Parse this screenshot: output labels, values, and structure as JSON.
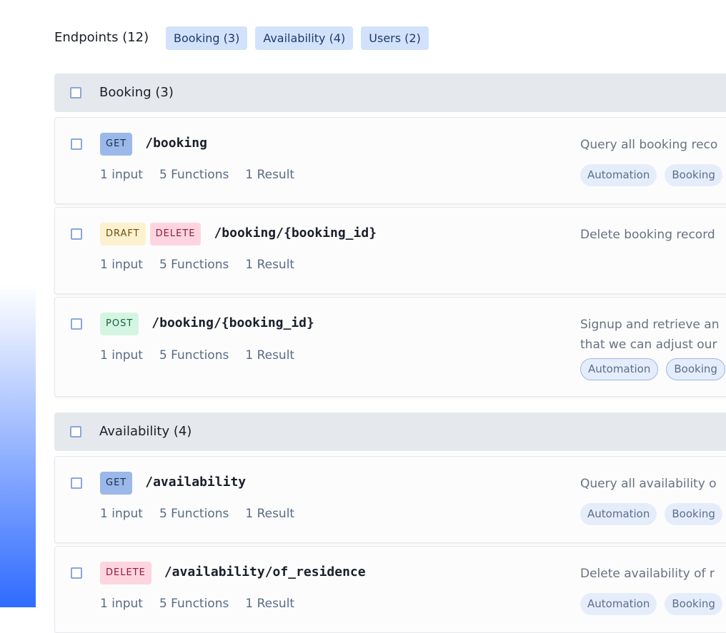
{
  "header": {
    "title": "Endpoints (12)",
    "filters": [
      "Booking (3)",
      "Availability (4)",
      "Users (2)"
    ]
  },
  "groups": [
    {
      "title": "Booking (3)",
      "endpoints": [
        {
          "badges": [
            {
              "label": "GET",
              "color": "#9bb8ea",
              "text_color": "#1e2a4a"
            }
          ],
          "path": "/booking",
          "stats": [
            "1 input",
            "5 Functions",
            "1 Result"
          ],
          "description": [
            "Query all booking reco"
          ],
          "tags": [
            "Automation",
            "Booking"
          ]
        },
        {
          "badges": [
            {
              "label": "DRAFT",
              "color": "#fdf1cf",
              "text_color": "#6b5010"
            },
            {
              "label": "DELETE",
              "color": "#fdd5e0",
              "text_color": "#8b1d3d"
            }
          ],
          "path": "/booking/{booking_id}",
          "stats": [
            "1 input",
            "5 Functions",
            "1 Result"
          ],
          "description": [
            "Delete booking record"
          ],
          "tags": []
        },
        {
          "badges": [
            {
              "label": "POST",
              "color": "#d5f5e3",
              "text_color": "#17603b"
            }
          ],
          "path": "/booking/{booking_id}",
          "stats": [
            "1 input",
            "5 Functions",
            "1 Result"
          ],
          "description": [
            "Signup and retrieve an",
            "that we can adjust our"
          ],
          "tags": [
            "Automation",
            "Booking"
          ]
        }
      ]
    },
    {
      "title": "Availability (4)",
      "endpoints": [
        {
          "badges": [
            {
              "label": "GET",
              "color": "#9bb8ea",
              "text_color": "#1e2a4a"
            }
          ],
          "path": "/availability",
          "stats": [
            "1 input",
            "5 Functions",
            "1 Result"
          ],
          "description": [
            "Query all availability o"
          ],
          "tags": [
            "Automation",
            "Booking"
          ]
        },
        {
          "badges": [
            {
              "label": "DELETE",
              "color": "#fdd5e0",
              "text_color": "#8b1d3d"
            }
          ],
          "path": "/availability/of_residence",
          "stats": [
            "1 input",
            "5 Functions",
            "1 Result"
          ],
          "description": [
            "Delete availability of r"
          ],
          "tags": [
            "Automation",
            "Booking"
          ]
        }
      ]
    }
  ]
}
